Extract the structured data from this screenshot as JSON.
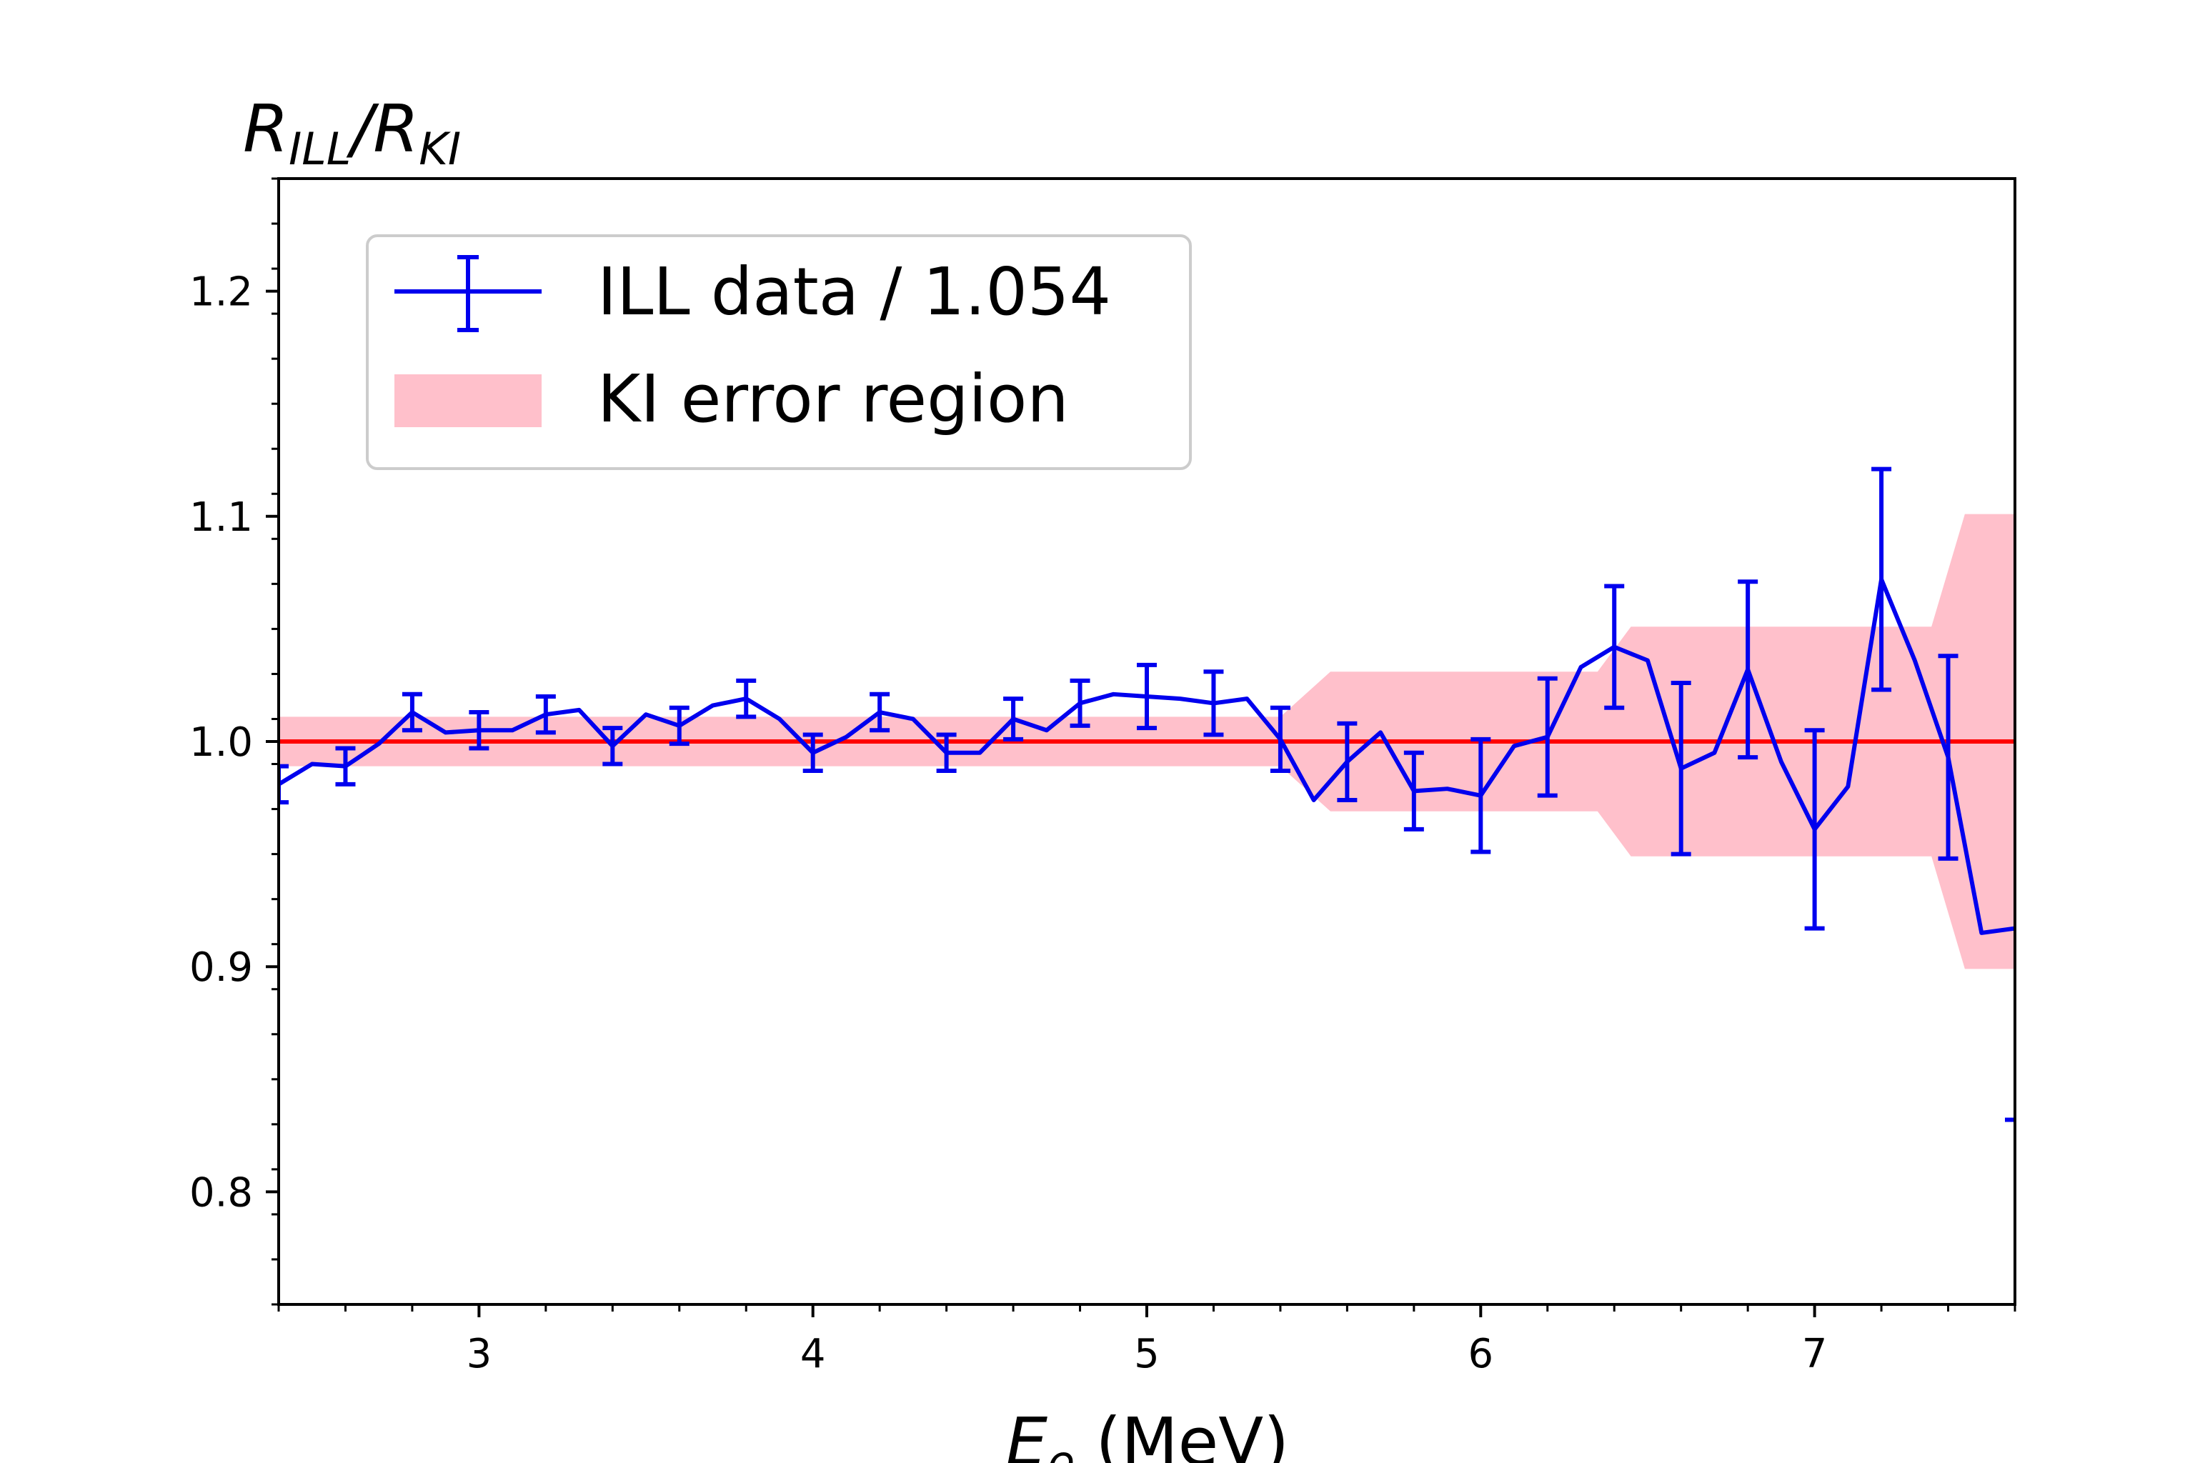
{
  "chart_data": {
    "type": "line",
    "title": "",
    "xlabel": "E",
    "xlabel_sub": "e",
    "xlabel_unit": " (MeV)",
    "ylabel": "R",
    "ylabel_sub1": "ILL",
    "ylabel_mid": "/R",
    "ylabel_sub2": "KI",
    "xlim": [
      2.4,
      7.6
    ],
    "ylim": [
      0.75,
      1.25
    ],
    "xticks": [
      3,
      4,
      5,
      6,
      7
    ],
    "xtick_labels": [
      "3",
      "4",
      "5",
      "6",
      "7"
    ],
    "yticks": [
      0.8,
      0.9,
      1.0,
      1.1,
      1.2
    ],
    "ytick_labels": [
      "0.8",
      "0.9",
      "1.0",
      "1.1",
      "1.2"
    ],
    "reference_line": {
      "y": 1.0,
      "color": "#ff0000"
    },
    "legend": {
      "position": "upper-left",
      "entries": [
        {
          "label": "ILL data / 1.054",
          "color": "#0000ee",
          "kind": "errorbar"
        },
        {
          "label": "KI error region",
          "color": "#ffc0cb",
          "kind": "band"
        }
      ]
    },
    "band": {
      "name": "KI error region",
      "color": "#ffc0cb",
      "x": [
        2.4,
        5.4,
        5.55,
        6.35,
        6.45,
        7.35,
        7.45,
        7.6
      ],
      "lower": [
        0.989,
        0.989,
        0.969,
        0.969,
        0.949,
        0.949,
        0.899,
        0.899
      ],
      "upper": [
        1.011,
        1.011,
        1.031,
        1.031,
        1.051,
        1.051,
        1.101,
        1.101
      ]
    },
    "series": [
      {
        "name": "ILL data / 1.054",
        "color": "#0000ee",
        "x": [
          2.4,
          2.5,
          2.6,
          2.7,
          2.8,
          2.9,
          3.0,
          3.1,
          3.2,
          3.3,
          3.4,
          3.5,
          3.6,
          3.7,
          3.8,
          3.9,
          4.0,
          4.1,
          4.2,
          4.3,
          4.4,
          4.5,
          4.6,
          4.7,
          4.8,
          4.9,
          5.0,
          5.1,
          5.2,
          5.3,
          5.4,
          5.5,
          5.6,
          5.7,
          5.8,
          5.9,
          6.0,
          6.1,
          6.2,
          6.3,
          6.4,
          6.5,
          6.6,
          6.7,
          6.8,
          6.9,
          7.0,
          7.1,
          7.2,
          7.3,
          7.4,
          7.5,
          7.6
        ],
        "y": [
          0.981,
          0.99,
          0.989,
          0.999,
          1.013,
          1.004,
          1.005,
          1.005,
          1.012,
          1.014,
          0.998,
          1.012,
          1.007,
          1.016,
          1.019,
          1.01,
          0.995,
          1.002,
          1.013,
          1.01,
          0.995,
          0.995,
          1.01,
          1.005,
          1.017,
          1.021,
          1.02,
          1.019,
          1.017,
          1.019,
          1.001,
          0.974,
          0.991,
          1.004,
          0.978,
          0.979,
          0.976,
          0.998,
          1.002,
          1.033,
          1.042,
          1.036,
          0.988,
          0.995,
          1.032,
          0.991,
          0.961,
          0.98,
          1.072,
          1.036,
          0.993,
          0.915,
          0.917
        ]
      }
    ],
    "errorbars": {
      "x": [
        2.4,
        2.6,
        2.8,
        3.0,
        3.2,
        3.4,
        3.6,
        3.8,
        4.0,
        4.2,
        4.4,
        4.6,
        4.8,
        5.0,
        5.2,
        5.4,
        5.6,
        5.8,
        6.0,
        6.2,
        6.4,
        6.6,
        6.8,
        7.0,
        7.2,
        7.4
      ],
      "y": [
        0.981,
        0.989,
        1.013,
        1.005,
        1.012,
        0.998,
        1.007,
        1.019,
        0.995,
        1.013,
        0.995,
        1.01,
        1.017,
        1.02,
        1.017,
        1.001,
        0.991,
        0.978,
        0.976,
        1.002,
        1.042,
        0.988,
        1.032,
        0.961,
        1.072,
        0.993
      ],
      "err": [
        0.008,
        0.008,
        0.008,
        0.008,
        0.008,
        0.008,
        0.008,
        0.008,
        0.008,
        0.008,
        0.008,
        0.009,
        0.01,
        0.014,
        0.014,
        0.014,
        0.017,
        0.017,
        0.025,
        0.026,
        0.027,
        0.038,
        0.039,
        0.044,
        0.049,
        0.045
      ]
    },
    "outlier_marker": {
      "x": 7.6,
      "y": 0.832
    }
  }
}
